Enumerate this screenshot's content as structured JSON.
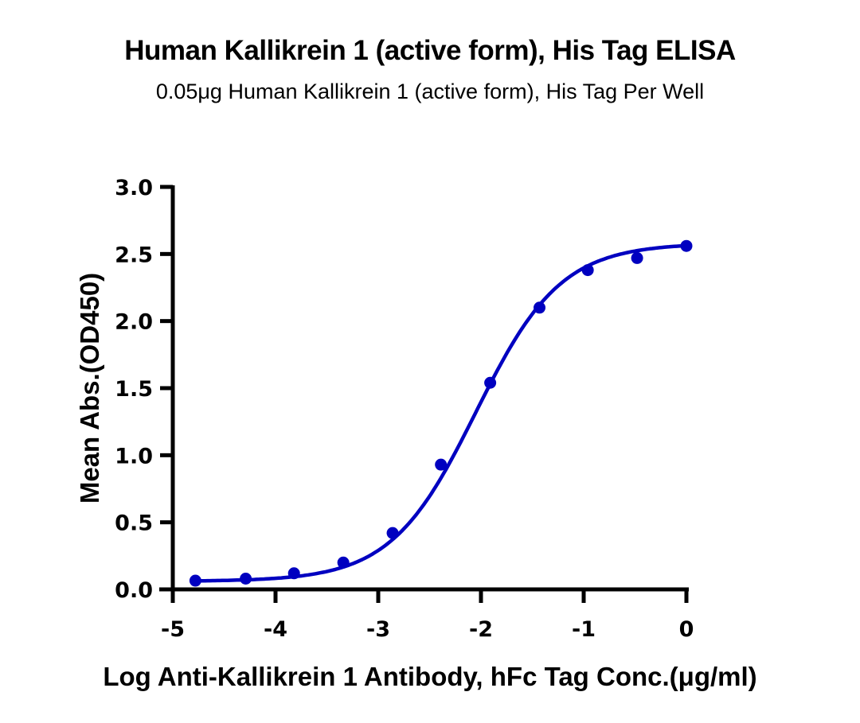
{
  "header": {
    "title": "Human Kallikrein 1 (active form), His Tag ELISA",
    "subtitle": "0.05μg Human Kallikrein 1 (active form), His Tag Per Well"
  },
  "axes": {
    "x_label": "Log Anti-Kallikrein 1 Antibody, hFc Tag Conc.(μg/ml)",
    "y_label": "Mean Abs.(OD450)",
    "x_ticks": [
      "-5",
      "-4",
      "-3",
      "-2",
      "-1",
      "0"
    ],
    "y_ticks": [
      "0.0",
      "0.5",
      "1.0",
      "1.5",
      "2.0",
      "2.5",
      "3.0"
    ]
  },
  "colors": {
    "series": "#0000c0",
    "axis": "#000000",
    "background": "#ffffff"
  },
  "chart_data": {
    "type": "scatter",
    "title": "Human Kallikrein 1 (active form), His Tag ELISA",
    "subtitle": "0.05μg Human Kallikrein 1 (active form), His Tag Per Well",
    "xlabel": "Log Anti-Kallikrein 1 Antibody, hFc Tag Conc.(μg/ml)",
    "ylabel": "Mean Abs.(OD450)",
    "xlim": [
      -5,
      0
    ],
    "ylim": [
      0,
      3.0
    ],
    "x_ticks": [
      -5,
      -4,
      -3,
      -2,
      -1,
      0
    ],
    "y_ticks": [
      0.0,
      0.5,
      1.0,
      1.5,
      2.0,
      2.5,
      3.0
    ],
    "grid": false,
    "legend": "none",
    "fit": "4-parameter logistic curve (smooth line through points)",
    "series": [
      {
        "name": "Anti-Kallikrein 1 Antibody, hFc Tag",
        "color": "#0000c0",
        "x": [
          -4.78,
          -4.29,
          -3.82,
          -3.34,
          -2.86,
          -2.39,
          -1.91,
          -1.43,
          -0.96,
          -0.48,
          0.0
        ],
        "y": [
          0.065,
          0.08,
          0.12,
          0.2,
          0.42,
          0.93,
          1.54,
          2.1,
          2.38,
          2.47,
          2.56
        ]
      }
    ]
  }
}
